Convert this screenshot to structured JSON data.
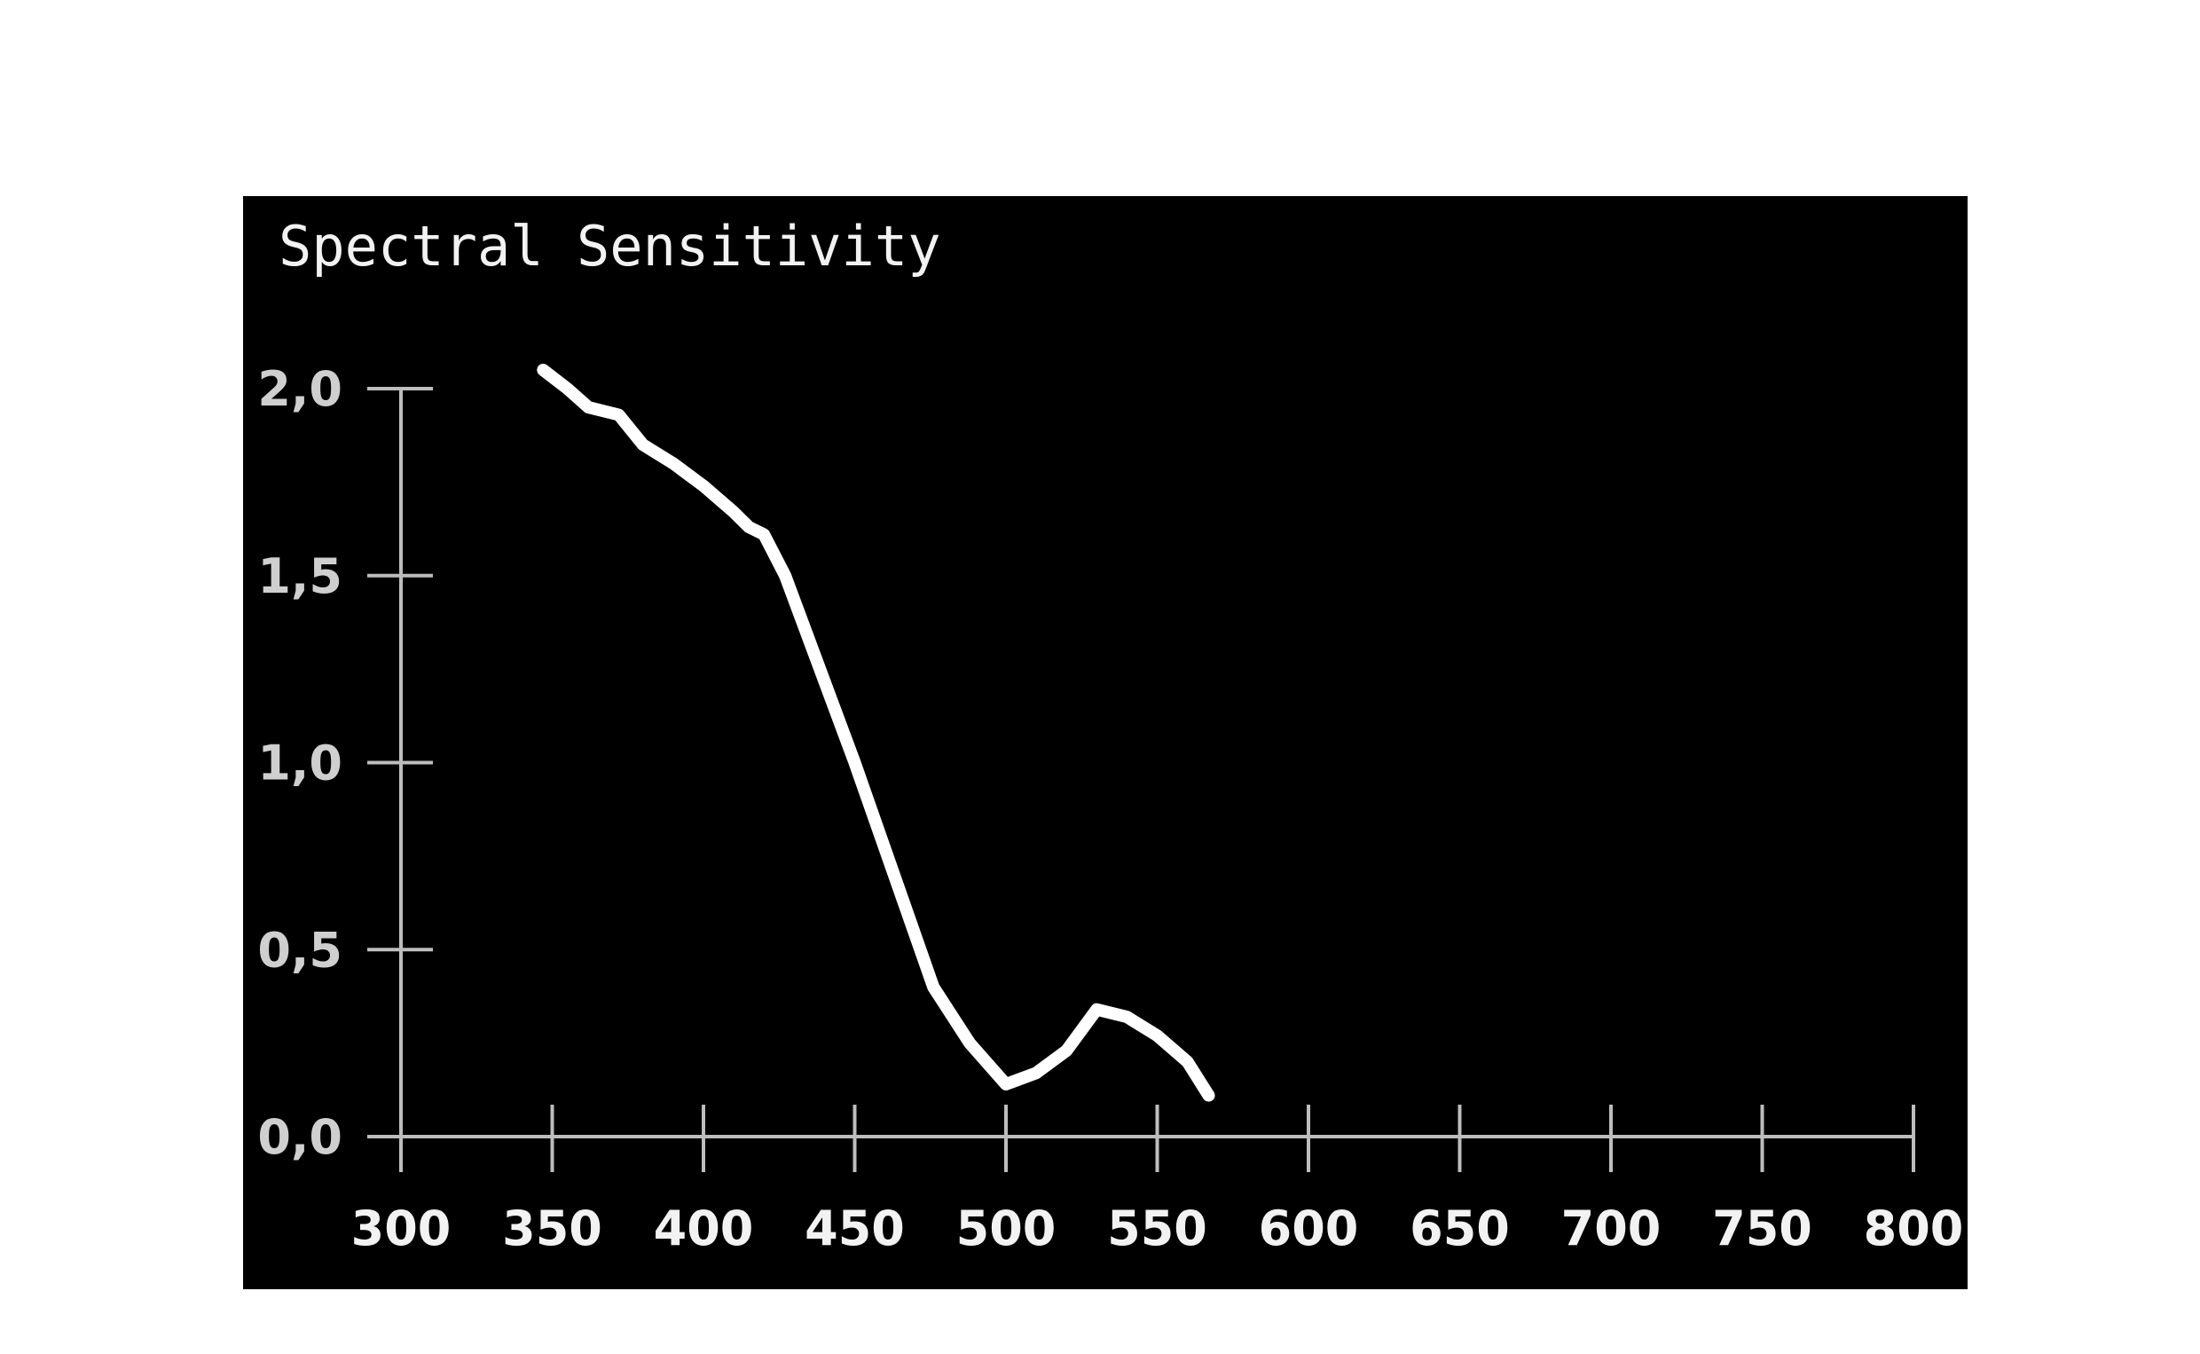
{
  "chart_data": {
    "type": "line",
    "title": "Spectral Sensitivity",
    "xlabel": "",
    "ylabel": "",
    "xlim": [
      300,
      800
    ],
    "ylim": [
      0,
      2
    ],
    "x_ticks": [
      300,
      350,
      400,
      450,
      500,
      550,
      600,
      650,
      700,
      750,
      800
    ],
    "x_tick_labels": [
      "300",
      "350",
      "400",
      "450",
      "500",
      "550",
      "600",
      "650",
      "700",
      "750",
      "800"
    ],
    "y_ticks": [
      0,
      0.5,
      1,
      1.5,
      2
    ],
    "y_tick_labels": [
      "0,0",
      "0,5",
      "1,0",
      "1,5",
      "2,0"
    ],
    "grid": false,
    "legend": "none",
    "colors": {
      "background": "#000000",
      "line": "#ffffff",
      "axis": "#bdbdbd",
      "page": "#ffffff"
    },
    "series": [
      {
        "points": [
          {
            "x": 347,
            "y": 2.05
          },
          {
            "x": 355,
            "y": 2.0
          },
          {
            "x": 362,
            "y": 1.95
          },
          {
            "x": 372,
            "y": 1.93
          },
          {
            "x": 380,
            "y": 1.85
          },
          {
            "x": 390,
            "y": 1.8
          },
          {
            "x": 400,
            "y": 1.74
          },
          {
            "x": 410,
            "y": 1.67
          },
          {
            "x": 415,
            "y": 1.63
          },
          {
            "x": 420,
            "y": 1.61
          },
          {
            "x": 427,
            "y": 1.5
          },
          {
            "x": 450,
            "y": 1.0
          },
          {
            "x": 476,
            "y": 0.4
          },
          {
            "x": 488,
            "y": 0.25
          },
          {
            "x": 500,
            "y": 0.14
          },
          {
            "x": 510,
            "y": 0.17
          },
          {
            "x": 520,
            "y": 0.23
          },
          {
            "x": 530,
            "y": 0.34
          },
          {
            "x": 540,
            "y": 0.32
          },
          {
            "x": 550,
            "y": 0.27
          },
          {
            "x": 560,
            "y": 0.2
          },
          {
            "x": 567,
            "y": 0.11
          }
        ]
      }
    ]
  }
}
